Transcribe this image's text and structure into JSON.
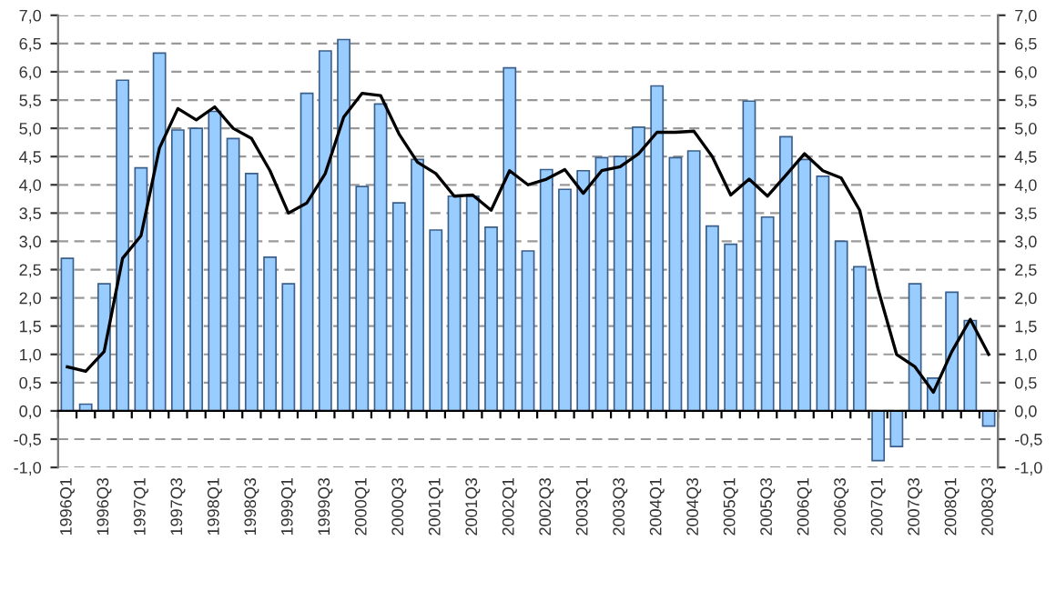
{
  "chart_data": {
    "type": "bar",
    "categories": [
      "1996Q1",
      null,
      "1996Q3",
      null,
      "1997Q1",
      null,
      "1997Q3",
      null,
      "1998Q1",
      null,
      "1998Q3",
      null,
      "1999Q1",
      null,
      "1999Q3",
      null,
      "2000Q1",
      null,
      "2000Q3",
      null,
      "2001Q1",
      null,
      "2001Q3",
      null,
      "2002Q1",
      null,
      "2002Q3",
      null,
      "2003Q1",
      null,
      "2003Q3",
      null,
      "2004Q1",
      null,
      "2004Q3",
      null,
      "2005Q1",
      null,
      "2005Q3",
      null,
      "2006Q1",
      null,
      "2006Q3",
      null,
      "2007Q1",
      null,
      "2007Q3",
      null,
      "2008Q1",
      null,
      "2008Q3"
    ],
    "series": [
      {
        "color": "#99ccff",
        "values": [
          2.7,
          0.12,
          2.25,
          5.85,
          4.3,
          6.33,
          4.97,
          5.0,
          5.3,
          4.82,
          4.2,
          2.72,
          2.25,
          5.62,
          6.37,
          6.57,
          3.97,
          5.43,
          3.68,
          4.45,
          3.2,
          3.8,
          3.8,
          3.25,
          6.07,
          2.83,
          4.27,
          3.92,
          4.25,
          4.48,
          4.5,
          5.02,
          5.75,
          4.48,
          4.6,
          3.27,
          2.95,
          5.48,
          3.43,
          4.85,
          4.45,
          4.15,
          3.0,
          2.55,
          -0.88,
          -0.63,
          2.25,
          0.58,
          2.1,
          1.6,
          -0.27
        ]
      },
      {
        "type": "line",
        "color": "#000000",
        "values": [
          0.78,
          0.7,
          1.05,
          2.7,
          3.1,
          4.65,
          5.35,
          5.15,
          5.38,
          5.0,
          4.82,
          4.25,
          3.5,
          3.68,
          4.2,
          5.2,
          5.62,
          5.58,
          4.9,
          4.4,
          4.2,
          3.8,
          3.82,
          3.55,
          4.25,
          4.0,
          4.1,
          4.27,
          3.85,
          4.25,
          4.32,
          4.55,
          4.93,
          4.93,
          4.95,
          4.5,
          3.82,
          4.1,
          3.8,
          4.17,
          4.55,
          4.25,
          4.12,
          3.55,
          2.15,
          1.0,
          0.78,
          0.33,
          1.05,
          1.62,
          1.0
        ]
      }
    ],
    "ylim": [
      -1.0,
      7.0
    ],
    "yticks": [
      {
        "value": -1.0,
        "label": "-1,0"
      },
      {
        "value": -0.5,
        "label": "-0,5"
      },
      {
        "value": 0,
        "label": "0,0"
      },
      {
        "value": 0.5,
        "label": "0,5"
      },
      {
        "value": 1.0,
        "label": "1,0"
      },
      {
        "value": 1.5,
        "label": "1,5"
      },
      {
        "value": 2.0,
        "label": "2,0"
      },
      {
        "value": 2.5,
        "label": "2,5"
      },
      {
        "value": 3.0,
        "label": "3,0"
      },
      {
        "value": 3.5,
        "label": "3,5"
      },
      {
        "value": 4.0,
        "label": "4,0"
      },
      {
        "value": 4.5,
        "label": "4,5"
      },
      {
        "value": 5.0,
        "label": "5,0"
      },
      {
        "value": 5.5,
        "label": "5,5"
      },
      {
        "value": 6.0,
        "label": "6,0"
      },
      {
        "value": 6.5,
        "label": "6,5"
      },
      {
        "value": 7.0,
        "label": "7,0"
      }
    ],
    "y2lim": [
      -1.0,
      7.0
    ],
    "y2ticks": [
      {
        "value": -1.0,
        "label": "-1,0"
      },
      {
        "value": -0.5,
        "label": "-0,5"
      },
      {
        "value": 0,
        "label": "0,0"
      },
      {
        "value": 0.5,
        "label": "0,5"
      },
      {
        "value": 1.0,
        "label": "1,0"
      },
      {
        "value": 1.5,
        "label": "1,5"
      },
      {
        "value": 2.0,
        "label": "2,0"
      },
      {
        "value": 2.5,
        "label": "2,5"
      },
      {
        "value": 3.0,
        "label": "3,0"
      },
      {
        "value": 3.5,
        "label": "3,5"
      },
      {
        "value": 4.0,
        "label": "4,0"
      },
      {
        "value": 4.5,
        "label": "4,5"
      },
      {
        "value": 5.0,
        "label": "5,0"
      },
      {
        "value": 5.5,
        "label": "5,5"
      },
      {
        "value": 6.0,
        "label": "6,0"
      },
      {
        "value": 6.5,
        "label": "6,5"
      },
      {
        "value": 7.0,
        "label": "7,0"
      }
    ],
    "grid": "y",
    "line_style": "solid",
    "legend": false
  }
}
